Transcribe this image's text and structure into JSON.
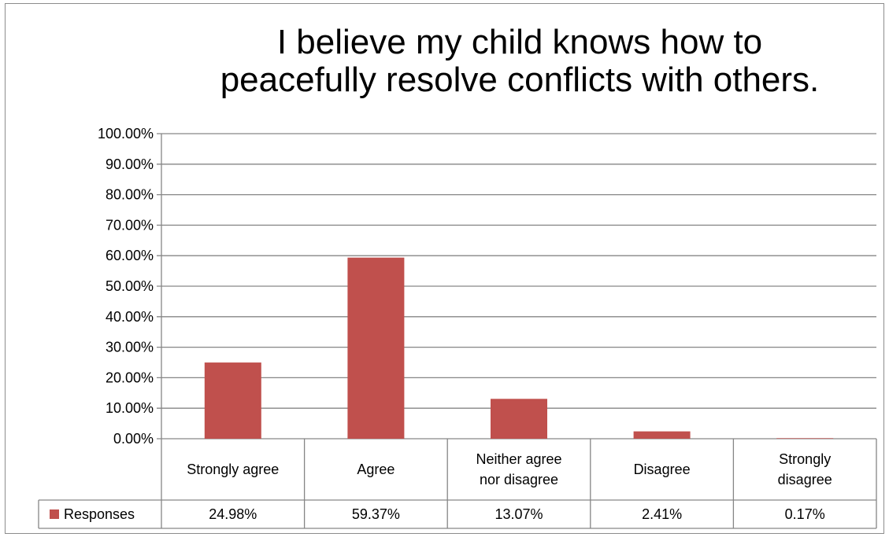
{
  "chart_data": {
    "type": "bar",
    "title_lines": [
      "I believe my child knows how to",
      "peacefully resolve conflicts with others."
    ],
    "categories": [
      [
        "Strongly agree"
      ],
      [
        "Agree"
      ],
      [
        "Neither agree",
        "nor disagree"
      ],
      [
        "Disagree"
      ],
      [
        "Strongly",
        "disagree"
      ]
    ],
    "series": [
      {
        "name": "Responses",
        "color": "#c0504d",
        "values": [
          24.98,
          59.37,
          13.07,
          2.41,
          0.17
        ],
        "labels": [
          "24.98%",
          "59.37%",
          "13.07%",
          "2.41%",
          "0.17%"
        ]
      }
    ],
    "y_ticks": [
      "0.00%",
      "10.00%",
      "20.00%",
      "30.00%",
      "40.00%",
      "50.00%",
      "60.00%",
      "70.00%",
      "80.00%",
      "90.00%",
      "100.00%"
    ],
    "ylim": [
      0,
      100
    ],
    "grid": true,
    "data_table": true
  }
}
